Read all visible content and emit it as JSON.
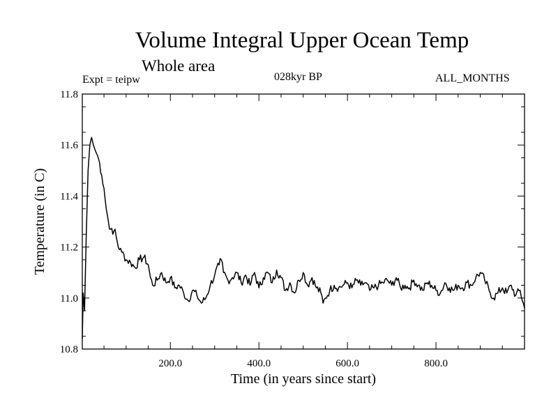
{
  "chart_data": {
    "type": "line",
    "title": "Volume Integral Upper Ocean Temp",
    "subtitle": "Whole area",
    "experiment_label": "Expt = teipw",
    "period_label": "028kyr BP",
    "months_label": "ALL_MONTHS",
    "xlabel": "Time (in years since start)",
    "ylabel": "Temperature (in C)",
    "xlim": [
      1,
      1000
    ],
    "ylim": [
      10.8,
      11.8
    ],
    "x_ticks": [
      200,
      400,
      600,
      800
    ],
    "x_tick_labels": [
      "200.0",
      "400.0",
      "600.0",
      "800.0"
    ],
    "y_ticks": [
      10.8,
      11.0,
      11.2,
      11.4,
      11.6,
      11.8
    ],
    "y_tick_labels": [
      "10.8",
      "11.0",
      "11.2",
      "11.4",
      "11.6",
      "11.8"
    ],
    "grid": false,
    "series": [
      {
        "name": "Temperature",
        "x": [
          1,
          3,
          6,
          10,
          14,
          18,
          22,
          26,
          30,
          35,
          40,
          45,
          50,
          55,
          60,
          65,
          70,
          75,
          80,
          85,
          90,
          95,
          100,
          110,
          120,
          130,
          140,
          150,
          155,
          160,
          170,
          180,
          190,
          200,
          210,
          220,
          230,
          240,
          250,
          260,
          270,
          280,
          290,
          300,
          310,
          315,
          320,
          330,
          340,
          350,
          360,
          370,
          380,
          390,
          400,
          410,
          420,
          430,
          440,
          450,
          460,
          470,
          480,
          490,
          500,
          510,
          520,
          530,
          540,
          545,
          550,
          560,
          570,
          580,
          590,
          600,
          610,
          620,
          630,
          640,
          650,
          660,
          670,
          680,
          690,
          700,
          710,
          720,
          730,
          740,
          750,
          760,
          770,
          780,
          790,
          800,
          810,
          820,
          830,
          840,
          850,
          860,
          870,
          880,
          890,
          900,
          910,
          920,
          930,
          940,
          950,
          960,
          970,
          980,
          990,
          1000
        ],
        "values": [
          10.84,
          11.02,
          10.95,
          11.25,
          11.5,
          11.6,
          11.63,
          11.6,
          11.58,
          11.56,
          11.53,
          11.48,
          11.43,
          11.35,
          11.3,
          11.27,
          11.25,
          11.27,
          11.22,
          11.19,
          11.18,
          11.17,
          11.15,
          11.14,
          11.12,
          11.15,
          11.16,
          11.13,
          11.08,
          11.05,
          11.07,
          11.1,
          11.06,
          11.08,
          11.04,
          11.05,
          11.02,
          10.99,
          11.03,
          11.01,
          10.98,
          11.0,
          11.05,
          11.09,
          11.13,
          11.15,
          11.1,
          11.07,
          11.08,
          11.1,
          11.06,
          11.09,
          11.05,
          11.1,
          11.04,
          11.08,
          11.1,
          11.06,
          11.11,
          11.08,
          11.03,
          11.06,
          11.02,
          11.07,
          11.1,
          11.05,
          11.08,
          11.04,
          11.02,
          10.98,
          11.0,
          11.03,
          11.05,
          11.04,
          11.05,
          11.06,
          11.04,
          11.07,
          11.05,
          11.06,
          11.03,
          11.04,
          11.05,
          11.06,
          11.07,
          11.05,
          11.08,
          11.04,
          11.05,
          11.04,
          11.07,
          11.05,
          11.03,
          11.06,
          11.05,
          11.03,
          11.02,
          11.06,
          11.04,
          11.03,
          11.05,
          11.04,
          11.06,
          11.05,
          11.08,
          11.1,
          11.07,
          11.03,
          11.0,
          11.02,
          11.04,
          11.02,
          11.05,
          11.01,
          11.03,
          10.96
        ]
      }
    ]
  }
}
